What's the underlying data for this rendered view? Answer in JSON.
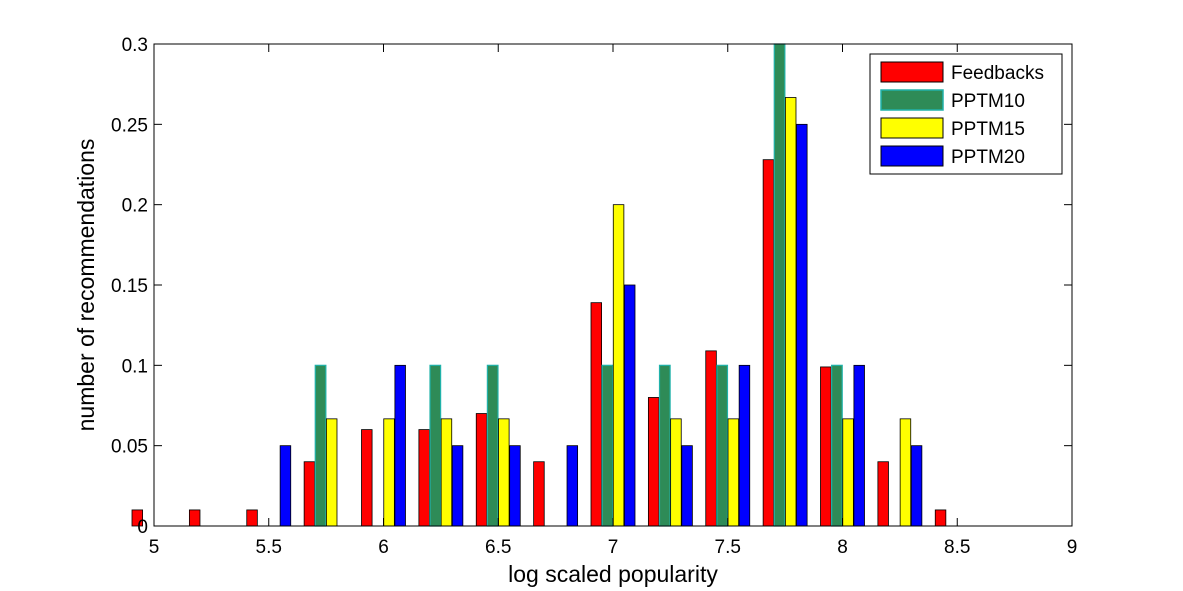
{
  "chart_data": {
    "type": "bar",
    "xlabel": "log scaled popularity",
    "ylabel": "number of recommendations",
    "xlim": [
      5,
      9
    ],
    "ylim": [
      0,
      0.3
    ],
    "xticks": [
      "5",
      "5.5",
      "6",
      "6.5",
      "7",
      "7.5",
      "8",
      "8.5",
      "9"
    ],
    "yticks": [
      "0",
      "0.05",
      "0.1",
      "0.15",
      "0.2",
      "0.25",
      "0.3"
    ],
    "x": [
      5.0,
      5.25,
      5.5,
      5.75,
      6.0,
      6.25,
      6.5,
      6.75,
      7.0,
      7.25,
      7.5,
      7.75,
      8.0,
      8.25,
      8.5,
      8.75
    ],
    "legend_position": "top-right",
    "series": [
      {
        "name": "Feedbacks",
        "color": "#ff0000",
        "values": [
          0.01,
          0.01,
          0.01,
          0.04,
          0.06,
          0.06,
          0.07,
          0.04,
          0.139,
          0.08,
          0.109,
          0.228,
          0.099,
          0.04,
          0.01,
          0
        ]
      },
      {
        "name": "PPTM10",
        "color": "#2e8b57",
        "edge": "#20b2aa",
        "values": [
          0,
          0,
          0,
          0.1,
          0,
          0.1,
          0.1,
          0,
          0.1,
          0.1,
          0.1,
          0.3,
          0.1,
          0,
          0,
          0
        ]
      },
      {
        "name": "PPTM15",
        "color": "#ffff00",
        "values": [
          0,
          0,
          0,
          0.0667,
          0.0667,
          0.0667,
          0.0667,
          0,
          0.2,
          0.0667,
          0.0667,
          0.2667,
          0.0667,
          0.0667,
          0,
          0
        ]
      },
      {
        "name": "PPTM20",
        "color": "#0000ff",
        "values": [
          0,
          0,
          0.05,
          0,
          0.1,
          0.05,
          0.05,
          0.05,
          0.15,
          0.05,
          0.1,
          0.25,
          0.1,
          0.05,
          0,
          0
        ]
      }
    ]
  }
}
